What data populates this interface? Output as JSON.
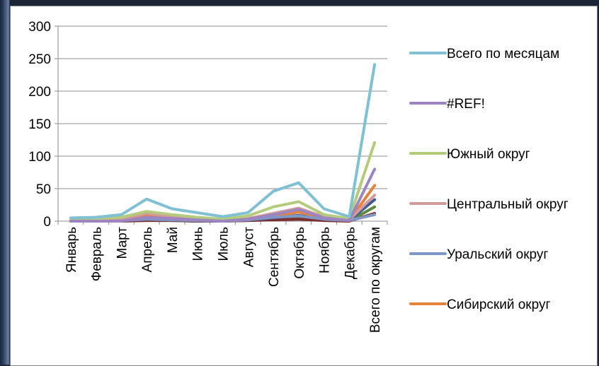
{
  "chart_data": {
    "type": "line",
    "title": "",
    "xlabel": "",
    "ylabel": "",
    "ylim": [
      0,
      300
    ],
    "yticks": [
      0,
      50,
      100,
      150,
      200,
      250,
      300
    ],
    "grid": true,
    "legend_position": "right",
    "categories": [
      "Январь",
      "Февраль",
      "Март",
      "Апрель",
      "Май",
      "Июнь",
      "Июль",
      "Август",
      "Сентябрь",
      "Октябрь",
      "Ноябрь",
      "Декабрь",
      "Всего по округам"
    ],
    "series": [
      {
        "name": "Всего по месяцам",
        "color": "#7fc1d3",
        "values": [
          5,
          6,
          10,
          34,
          19,
          13,
          7,
          13,
          46,
          59,
          19,
          7,
          241
        ],
        "legend": true
      },
      {
        "name": "#REF!",
        "color": "#9c85c0",
        "values": [
          0,
          0,
          0,
          6,
          4,
          2,
          0,
          3,
          10,
          18,
          5,
          1,
          80
        ],
        "legend": true
      },
      {
        "name": "Южный округ",
        "color": "#b3cb7b",
        "values": [
          2,
          4,
          6,
          15,
          10,
          6,
          3,
          8,
          22,
          30,
          10,
          4,
          121
        ],
        "legend": true
      },
      {
        "name": "Центральный округ",
        "color": "#d39a9a",
        "values": [
          1,
          2,
          3,
          12,
          7,
          4,
          1,
          4,
          12,
          20,
          7,
          2,
          40
        ],
        "legend": true
      },
      {
        "name": "Уральский округ",
        "color": "#7f97c5",
        "values": [
          0,
          1,
          1,
          3,
          2,
          1,
          0,
          2,
          6,
          8,
          3,
          1,
          10
        ],
        "legend": true
      },
      {
        "name": "Сибирский округ",
        "color": "#e4843a",
        "values": [
          1,
          1,
          2,
          9,
          5,
          2,
          1,
          3,
          8,
          14,
          5,
          1,
          55
        ],
        "legend": true
      },
      {
        "name": "",
        "color": "#3c5a96",
        "values": [
          0,
          0,
          1,
          3,
          2,
          1,
          0,
          2,
          5,
          9,
          3,
          1,
          33
        ],
        "legend": false
      },
      {
        "name": "",
        "color": "#7c2f2f",
        "values": [
          0,
          0,
          0,
          1,
          1,
          0,
          0,
          1,
          2,
          3,
          1,
          0,
          12
        ],
        "legend": false
      },
      {
        "name": "",
        "color": "#5b8a3c",
        "values": [
          0,
          0,
          0,
          2,
          1,
          0,
          0,
          1,
          3,
          5,
          2,
          0,
          22
        ],
        "legend": false
      }
    ]
  }
}
